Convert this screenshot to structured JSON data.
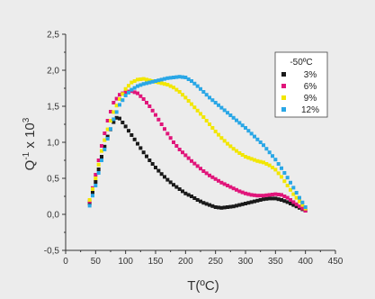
{
  "chart_data": {
    "type": "scatter",
    "title": "",
    "xlabel": "T(ºC)",
    "ylabel_main": "Q",
    "ylabel_sup": "-1",
    "ylabel_mid": " x 10",
    "ylabel_exp": "3",
    "xlim": [
      0,
      450
    ],
    "ylim": [
      -0.5,
      2.5
    ],
    "xticks": [
      0,
      50,
      100,
      150,
      200,
      250,
      300,
      350,
      400,
      450
    ],
    "yticks": [
      "-0,5",
      "0,0",
      "0,5",
      "1,0",
      "1,5",
      "2,0",
      "2,5"
    ],
    "ytick_values": [
      -0.5,
      0.0,
      0.5,
      1.0,
      1.5,
      2.0,
      2.5
    ],
    "grid": false,
    "legend": {
      "title": "-50ºC",
      "placement": "top-right"
    },
    "series": [
      {
        "name": "3%",
        "color": "#1a1a1a",
        "x": [
          40,
          50,
          60,
          70,
          80,
          85,
          90,
          100,
          110,
          120,
          130,
          140,
          150,
          160,
          170,
          180,
          190,
          200,
          210,
          220,
          230,
          240,
          250,
          260,
          270,
          280,
          290,
          300,
          310,
          320,
          330,
          340,
          350,
          360,
          370,
          380,
          390,
          400
        ],
        "y": [
          0.15,
          0.45,
          0.8,
          1.08,
          1.28,
          1.34,
          1.33,
          1.22,
          1.1,
          0.98,
          0.86,
          0.75,
          0.65,
          0.56,
          0.48,
          0.41,
          0.35,
          0.29,
          0.25,
          0.2,
          0.16,
          0.13,
          0.1,
          0.09,
          0.1,
          0.11,
          0.13,
          0.15,
          0.17,
          0.19,
          0.21,
          0.22,
          0.22,
          0.2,
          0.17,
          0.13,
          0.09,
          0.05
        ]
      },
      {
        "name": "6%",
        "color": "#e0157a",
        "x": [
          40,
          50,
          60,
          70,
          80,
          90,
          100,
          110,
          120,
          130,
          140,
          150,
          160,
          170,
          180,
          190,
          200,
          210,
          220,
          230,
          240,
          250,
          260,
          270,
          280,
          290,
          300,
          310,
          320,
          330,
          340,
          350,
          360,
          370,
          380,
          390,
          400
        ],
        "y": [
          0.18,
          0.55,
          0.95,
          1.3,
          1.55,
          1.66,
          1.7,
          1.71,
          1.68,
          1.6,
          1.5,
          1.38,
          1.25,
          1.12,
          1.0,
          0.9,
          0.82,
          0.74,
          0.67,
          0.6,
          0.54,
          0.49,
          0.44,
          0.4,
          0.36,
          0.32,
          0.29,
          0.27,
          0.26,
          0.26,
          0.27,
          0.28,
          0.27,
          0.23,
          0.17,
          0.11,
          0.05
        ]
      },
      {
        "name": "9%",
        "color": "#f2e600",
        "x": [
          40,
          50,
          60,
          70,
          80,
          90,
          100,
          110,
          120,
          130,
          140,
          150,
          160,
          170,
          180,
          190,
          200,
          210,
          220,
          230,
          240,
          250,
          260,
          270,
          280,
          290,
          300,
          310,
          320,
          330,
          340,
          350,
          360,
          370,
          380,
          390,
          400
        ],
        "y": [
          0.2,
          0.5,
          0.88,
          1.18,
          1.42,
          1.6,
          1.74,
          1.83,
          1.87,
          1.88,
          1.86,
          1.84,
          1.82,
          1.8,
          1.76,
          1.7,
          1.62,
          1.53,
          1.44,
          1.35,
          1.25,
          1.15,
          1.06,
          0.98,
          0.91,
          0.85,
          0.8,
          0.77,
          0.74,
          0.72,
          0.68,
          0.62,
          0.52,
          0.4,
          0.28,
          0.18,
          0.08
        ]
      },
      {
        "name": "12%",
        "color": "#2aa7e6",
        "x": [
          40,
          50,
          60,
          70,
          80,
          90,
          100,
          110,
          120,
          130,
          140,
          150,
          160,
          170,
          180,
          190,
          200,
          210,
          220,
          230,
          240,
          250,
          260,
          270,
          280,
          290,
          300,
          310,
          320,
          330,
          340,
          350,
          360,
          370,
          380,
          390,
          400
        ],
        "y": [
          0.12,
          0.4,
          0.75,
          1.05,
          1.32,
          1.52,
          1.65,
          1.73,
          1.78,
          1.81,
          1.83,
          1.85,
          1.87,
          1.89,
          1.9,
          1.91,
          1.9,
          1.85,
          1.78,
          1.7,
          1.62,
          1.55,
          1.48,
          1.41,
          1.34,
          1.27,
          1.2,
          1.12,
          1.04,
          0.96,
          0.86,
          0.76,
          0.64,
          0.51,
          0.37,
          0.23,
          0.1
        ]
      }
    ]
  }
}
